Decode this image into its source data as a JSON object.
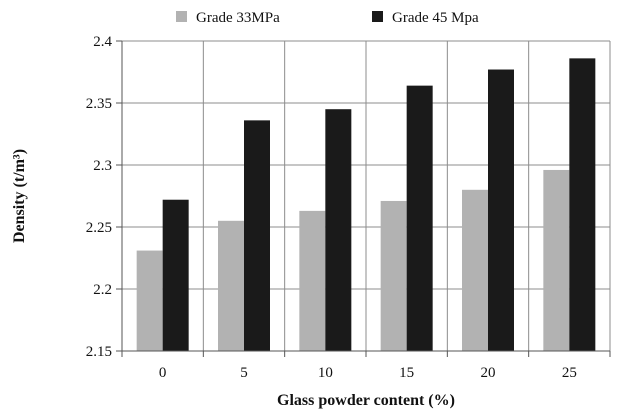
{
  "chart_data": {
    "type": "bar",
    "title": "",
    "xlabel": "Glass powder content (%)",
    "ylabel": "Density (t/m³)",
    "categories": [
      "0",
      "5",
      "10",
      "15",
      "20",
      "25"
    ],
    "ylim": [
      2.15,
      2.4
    ],
    "yticks": [
      "2.15",
      "2.2",
      "2.25",
      "2.3",
      "2.35",
      "2.4"
    ],
    "grid": true,
    "legend_position": "top",
    "series": [
      {
        "name": "Grade 33MPa",
        "color": "#b2b2b2",
        "values": [
          2.231,
          2.255,
          2.263,
          2.271,
          2.28,
          2.296
        ]
      },
      {
        "name": "Grade 45 Mpa",
        "color": "#1a1a1a",
        "values": [
          2.272,
          2.336,
          2.345,
          2.364,
          2.377,
          2.386
        ]
      }
    ]
  }
}
